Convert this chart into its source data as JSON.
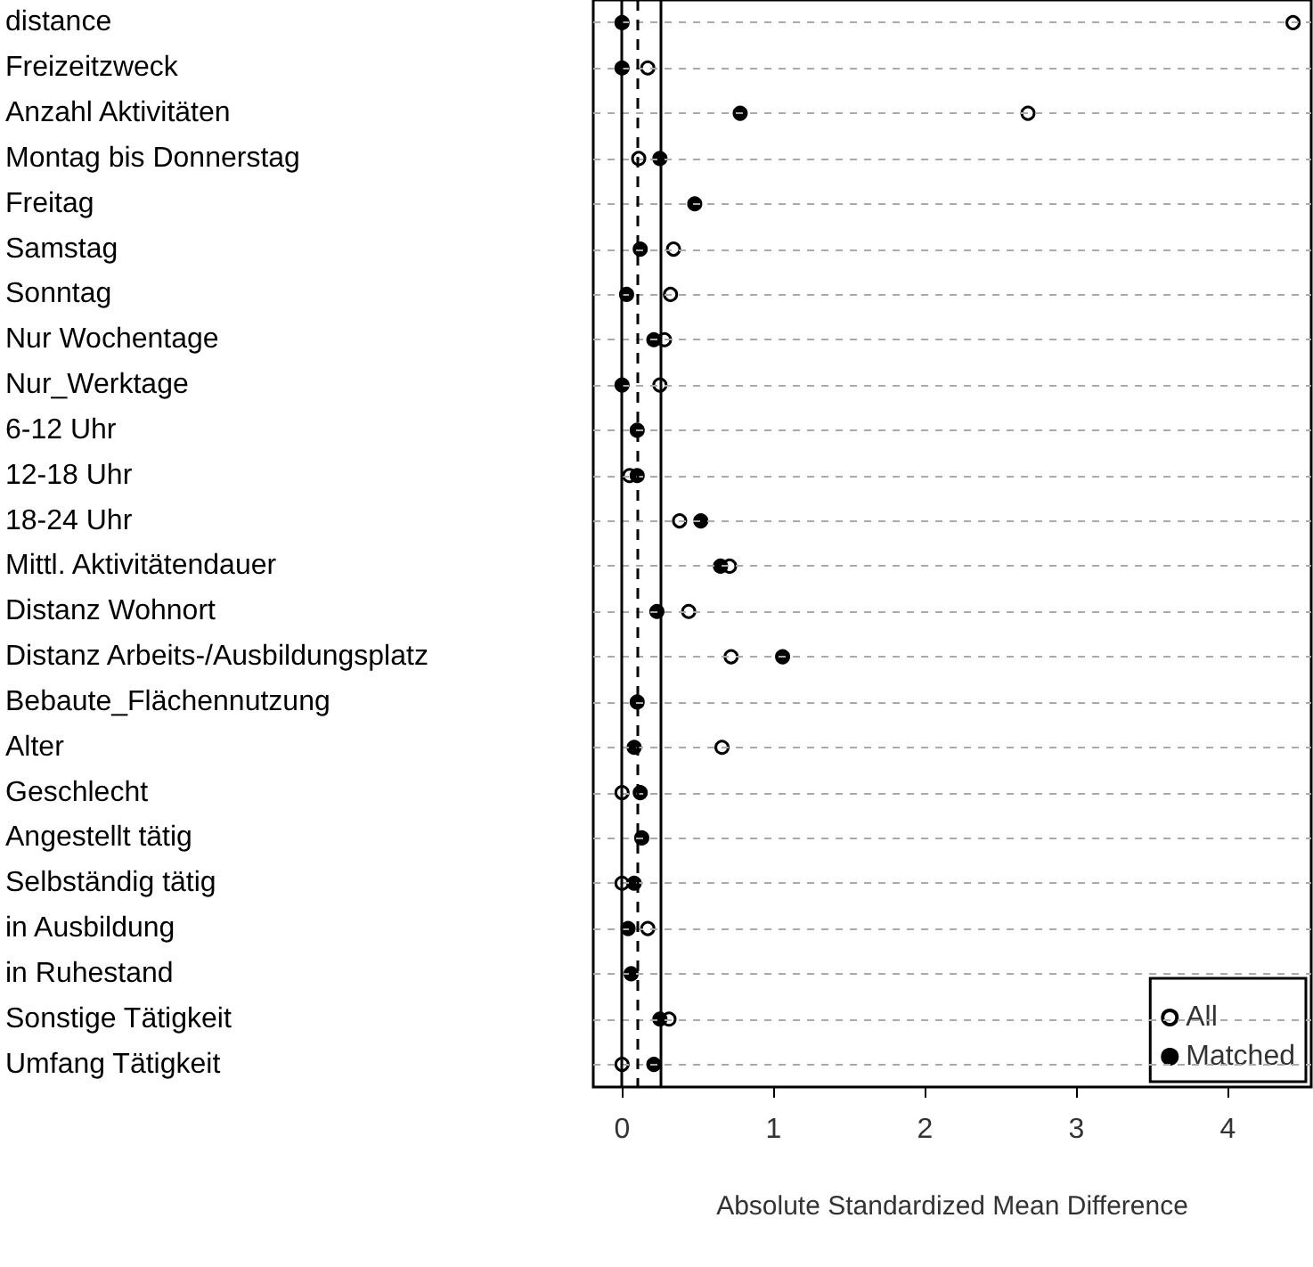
{
  "chart_data": {
    "type": "scatter",
    "orientation": "horizontal",
    "categories": [
      "distance",
      "Freizeitzweck",
      "Anzahl Aktivitäten",
      "Montag bis Donnerstag",
      "Freitag",
      "Samstag",
      "Sonntag",
      "Nur Wochentage",
      "Nur_Werktage",
      "6-12 Uhr",
      "12-18 Uhr",
      "18-24 Uhr",
      "Mittl. Aktivitätendauer",
      "Distanz Wohnort",
      "Distanz Arbeits-/Ausbildungsplatz",
      "Bebaute_Flächennutzung",
      "Alter",
      "Geschlecht",
      "Angestellt tätig",
      "Selbständig tätig",
      "in Ausbildung",
      "in Ruhestand",
      "Sonstige Tätigkeit",
      "Umfang Tätigkeit"
    ],
    "series": [
      {
        "name": "All",
        "color": "#ffffff",
        "values": [
          4.43,
          0.17,
          2.68,
          0.11,
          null,
          0.34,
          0.32,
          0.28,
          0.25,
          null,
          0.05,
          0.38,
          0.71,
          0.44,
          0.72,
          null,
          0.66,
          0.0,
          null,
          0.0,
          0.17,
          null,
          0.31,
          0.0
        ]
      },
      {
        "name": "Matched",
        "color": "#000000",
        "values": [
          0.0,
          0.0,
          0.78,
          0.25,
          0.48,
          0.12,
          0.03,
          0.21,
          0.0,
          0.1,
          0.1,
          0.52,
          0.65,
          0.23,
          1.06,
          0.1,
          0.08,
          0.12,
          0.13,
          0.08,
          0.04,
          0.06,
          0.25,
          0.21
        ]
      }
    ],
    "xlabel": "Absolute Standardized Mean Difference",
    "xlim": [
      -0.19,
      4.55
    ],
    "xticks": [
      0,
      1,
      2,
      3,
      4
    ],
    "ref_lines": [
      {
        "axis": "x",
        "value": 0,
        "color": "#000000",
        "line_style": "solid"
      },
      {
        "axis": "x",
        "value": 0.1,
        "color": "#000000",
        "line_style": "dashed"
      },
      {
        "axis": "x",
        "value": 0.25,
        "color": "#000000",
        "line_style": "solid"
      }
    ],
    "grid": "y",
    "legend": "bottom right",
    "marker": "circle"
  }
}
